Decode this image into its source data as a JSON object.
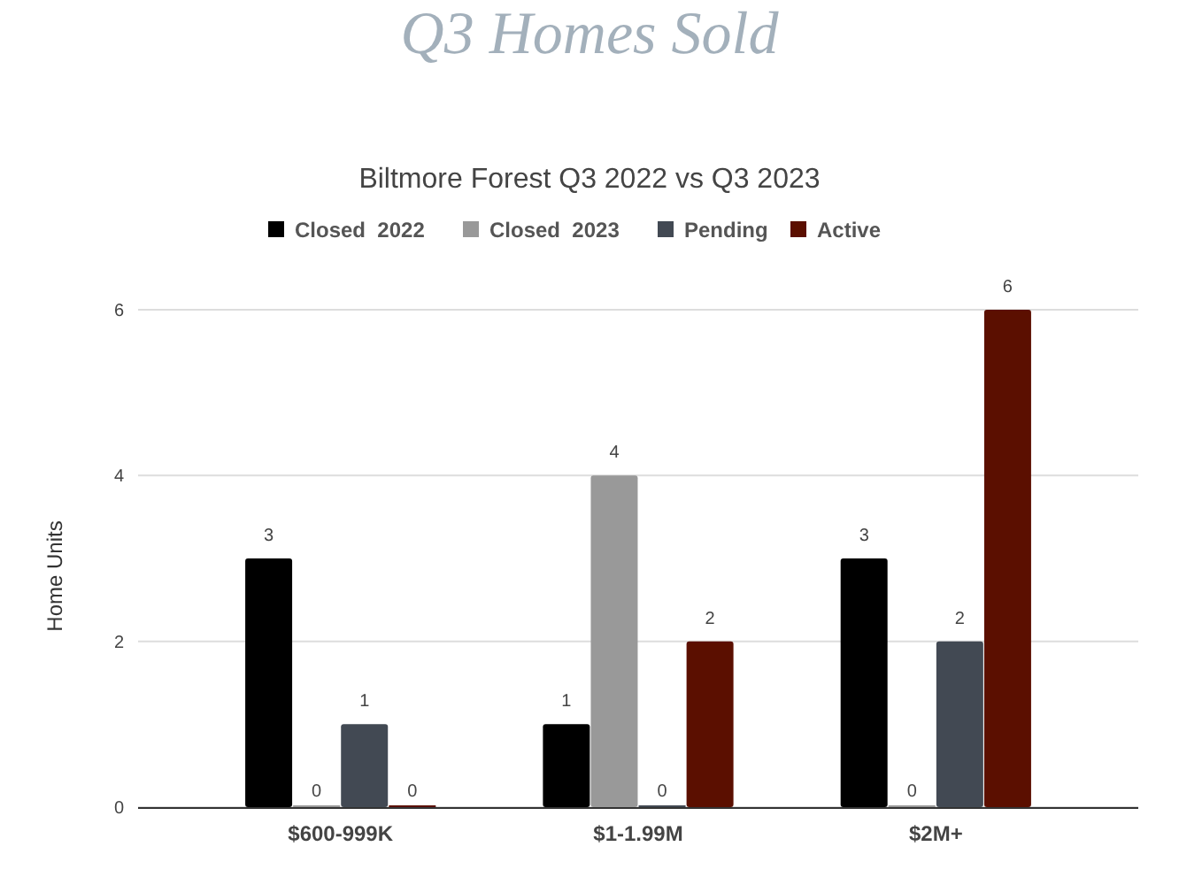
{
  "chart_data": {
    "type": "bar",
    "title": "Q3 Homes Sold",
    "subtitle": "Biltmore Forest Q3 2022 vs Q3 2023",
    "ylabel": "Home Units",
    "categories": [
      "$600-999K",
      "$1-1.99M",
      "$2M+"
    ],
    "series": [
      {
        "name": "Closed  2022",
        "color": "#000000",
        "values": [
          3,
          1,
          3
        ]
      },
      {
        "name": "Closed  2023",
        "color": "#999999",
        "values": [
          0,
          4,
          0
        ]
      },
      {
        "name": "Pending",
        "color": "#424953",
        "values": [
          1,
          0,
          2
        ]
      },
      {
        "name": "Active",
        "color": "#5b0f00",
        "values": [
          0,
          2,
          6
        ]
      }
    ],
    "ylim": [
      0,
      6
    ],
    "yticks": [
      0,
      2,
      4,
      6
    ],
    "grid": "y",
    "legend": "top",
    "data_labels": true
  }
}
